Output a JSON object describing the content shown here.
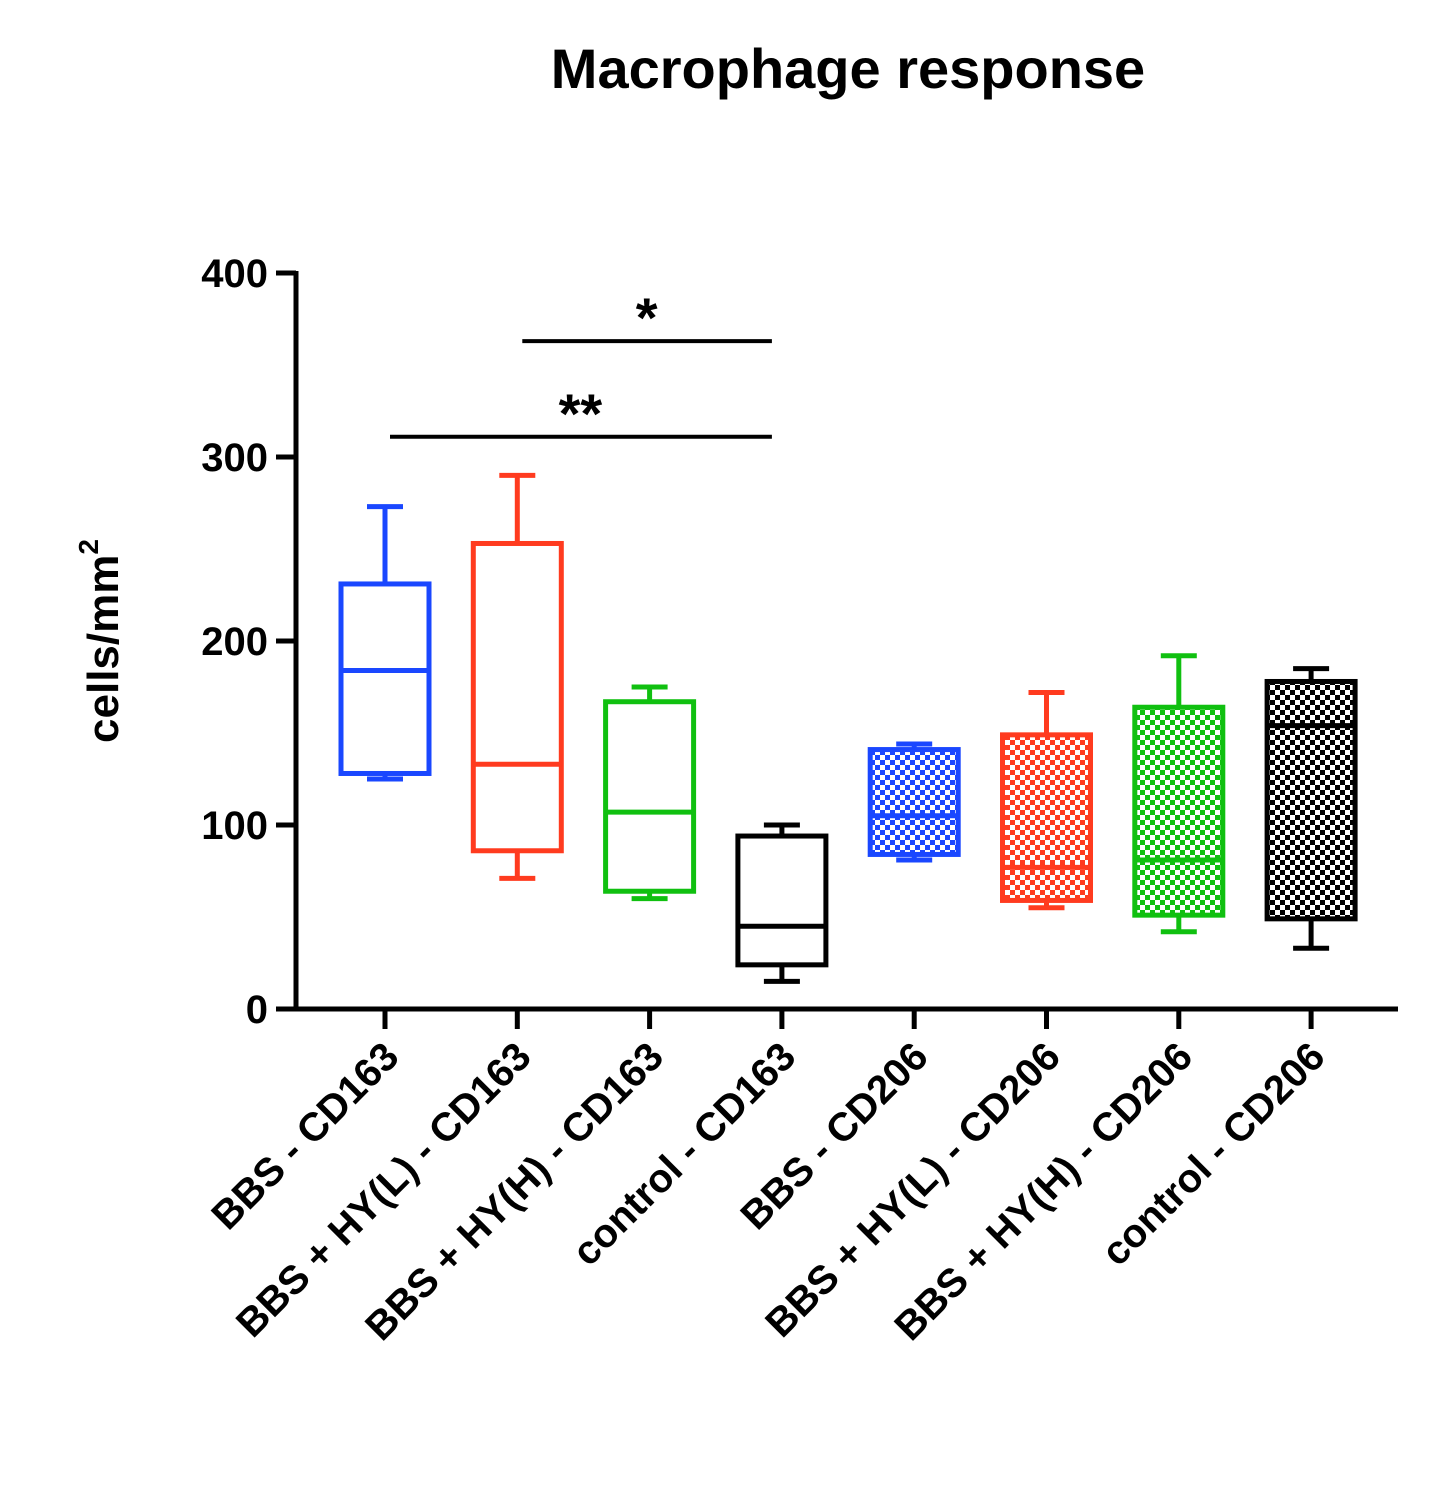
{
  "chart_data": {
    "type": "box",
    "title": "Macrophage response",
    "ylabel": "cells/mm",
    "ylabel_superscript": "2",
    "xlabel": "",
    "ylim": [
      0,
      400
    ],
    "yticks": [
      0,
      100,
      200,
      300,
      400
    ],
    "ytick_labels": [
      "0",
      "100",
      "200",
      "300",
      "400"
    ],
    "grid": false,
    "boxes": [
      {
        "label": "BBS - CD163",
        "min": 125,
        "q1": 128,
        "median": 184,
        "q3": 231,
        "max": 273,
        "color": "#1a47ff",
        "pattern": "none"
      },
      {
        "label": "BBS + HY(L) - CD163",
        "min": 71,
        "q1": 86,
        "median": 133,
        "q3": 253,
        "max": 290,
        "color": "#ff3b1f",
        "pattern": "none"
      },
      {
        "label": "BBS + HY(H) - CD163",
        "min": 60,
        "q1": 64,
        "median": 107,
        "q3": 167,
        "max": 175,
        "color": "#10c010",
        "pattern": "none"
      },
      {
        "label": "control - CD163",
        "min": 15,
        "q1": 24,
        "median": 45,
        "q3": 94,
        "max": 100,
        "color": "#000000",
        "pattern": "none"
      },
      {
        "label": "BBS - CD206",
        "min": 81,
        "q1": 84,
        "median": 105,
        "q3": 141,
        "max": 144,
        "color": "#1a47ff",
        "pattern": "checker"
      },
      {
        "label": "BBS + HY(L) - CD206",
        "min": 55,
        "q1": 59,
        "median": 77,
        "q3": 149,
        "max": 172,
        "color": "#ff3b1f",
        "pattern": "checker"
      },
      {
        "label": "BBS + HY(H) - CD206",
        "min": 42,
        "q1": 51,
        "median": 81,
        "q3": 164,
        "max": 192,
        "color": "#10c010",
        "pattern": "checker"
      },
      {
        "label": "control - CD206",
        "min": 33,
        "q1": 49,
        "median": 154,
        "q3": 178,
        "max": 185,
        "color": "#000000",
        "pattern": "checker"
      }
    ],
    "significance": [
      {
        "from": 1,
        "to": 3,
        "y": 363,
        "label": "*"
      },
      {
        "from": 0,
        "to": 3,
        "y": 311,
        "label": "**"
      }
    ]
  }
}
